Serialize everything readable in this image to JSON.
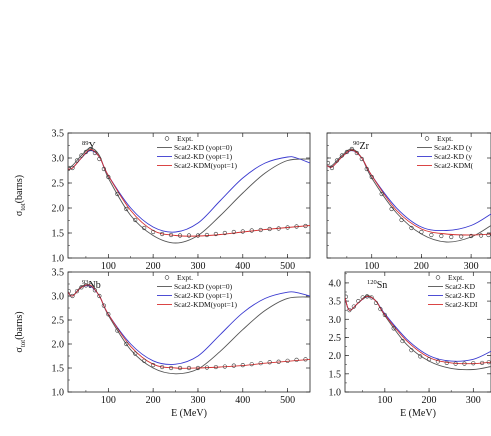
{
  "chart_data": [
    {
      "type": "line",
      "panel": "top-left",
      "nucleus": {
        "mass": "89",
        "element": "Y"
      },
      "xlim": [
        10,
        550
      ],
      "ylim": [
        1.0,
        3.5
      ],
      "xticks": [
        100,
        200,
        300,
        400,
        500
      ],
      "xtick_labels": [
        "100",
        "200",
        "300",
        "400",
        "500"
      ],
      "yticks": [
        1.0,
        1.5,
        2.0,
        2.5,
        3.0,
        3.5
      ],
      "ytick_labels": [
        "1.0",
        "1.5",
        "2.0",
        "2.5",
        "3.0",
        "3.5"
      ],
      "ylabel": {
        "sigma": "σ",
        "sub": "tot",
        "rest": "(barns)"
      },
      "xlabel": "",
      "legend": {
        "expt": "Expt.",
        "position": "top-right",
        "entries": [
          "Scat2-KD  (yopt=0)",
          "Scat2-KD  (yopt=1)",
          "Scat2-KDM(yopt=1)"
        ]
      },
      "series": [
        {
          "name": "Scat2-KD  (yopt=0)",
          "color": "#555555",
          "x": [
            10,
            20,
            40,
            60,
            80,
            100,
            150,
            200,
            250,
            300,
            350,
            400,
            450,
            500,
            550
          ],
          "y": [
            2.8,
            2.85,
            3.05,
            3.2,
            3.05,
            2.6,
            1.85,
            1.45,
            1.3,
            1.45,
            1.85,
            2.3,
            2.7,
            2.95,
            2.98
          ]
        },
        {
          "name": "Scat2-KD  (yopt=1)",
          "color": "#3a3ad0",
          "x": [
            10,
            20,
            40,
            60,
            80,
            100,
            150,
            200,
            250,
            300,
            350,
            400,
            450,
            500,
            520,
            550
          ],
          "y": [
            2.78,
            2.8,
            3.0,
            3.15,
            3.02,
            2.65,
            2.0,
            1.62,
            1.52,
            1.7,
            2.15,
            2.6,
            2.9,
            3.02,
            3.0,
            2.9
          ]
        },
        {
          "name": "Scat2-KDM(yopt=1)",
          "color": "#d63030",
          "x": [
            10,
            20,
            40,
            60,
            80,
            100,
            150,
            200,
            250,
            300,
            350,
            400,
            450,
            500,
            550
          ],
          "y": [
            2.78,
            2.8,
            3.0,
            3.17,
            3.02,
            2.65,
            1.95,
            1.55,
            1.45,
            1.44,
            1.47,
            1.52,
            1.57,
            1.61,
            1.65
          ]
        }
      ],
      "expt": {
        "x": [
          12,
          20,
          30,
          40,
          50,
          60,
          70,
          80,
          90,
          100,
          120,
          140,
          160,
          180,
          200,
          220,
          240,
          260,
          280,
          300,
          320,
          340,
          360,
          380,
          400,
          420,
          440,
          460,
          480,
          500,
          520,
          540
        ],
        "y": [
          2.8,
          2.8,
          2.95,
          3.05,
          3.12,
          3.18,
          3.1,
          2.98,
          2.78,
          2.62,
          2.28,
          1.98,
          1.76,
          1.6,
          1.52,
          1.48,
          1.46,
          1.45,
          1.45,
          1.45,
          1.46,
          1.48,
          1.5,
          1.52,
          1.53,
          1.55,
          1.56,
          1.58,
          1.59,
          1.61,
          1.63,
          1.64
        ]
      }
    },
    {
      "type": "line",
      "panel": "top-right",
      "nucleus": {
        "mass": "90",
        "element": "Zr"
      },
      "xlim": [
        10,
        340
      ],
      "ylim": [
        1.0,
        3.5
      ],
      "xticks": [
        100,
        200,
        300
      ],
      "xtick_labels": [
        "100",
        "200",
        "300"
      ],
      "yticks": [
        1.0,
        1.5,
        2.0,
        2.5,
        3.0,
        3.5
      ],
      "ytick_labels": [],
      "ylabel": null,
      "xlabel": "",
      "legend": {
        "expt": "Expt.",
        "position": "top-right",
        "entries": [
          "Scat2-KD  (y",
          "Scat2-KD  (y",
          "Scat2-KDM("
        ]
      },
      "series": [
        {
          "name": "Scat2-KD  (y",
          "color": "#555555",
          "x": [
            10,
            20,
            40,
            60,
            80,
            100,
            150,
            200,
            250,
            300,
            340
          ],
          "y": [
            2.85,
            2.85,
            3.05,
            3.18,
            3.0,
            2.6,
            1.9,
            1.48,
            1.32,
            1.42,
            1.65
          ]
        },
        {
          "name": "Scat2-KD  (y",
          "color": "#3a3ad0",
          "x": [
            10,
            20,
            40,
            60,
            80,
            100,
            150,
            200,
            250,
            300,
            340
          ],
          "y": [
            2.85,
            2.82,
            3.02,
            3.15,
            3.0,
            2.65,
            2.0,
            1.62,
            1.55,
            1.65,
            1.88
          ]
        },
        {
          "name": "Scat2-KDM(",
          "color": "#d63030",
          "x": [
            10,
            20,
            40,
            60,
            80,
            100,
            150,
            200,
            250,
            300,
            340
          ],
          "y": [
            2.85,
            2.82,
            3.02,
            3.16,
            3.0,
            2.65,
            1.95,
            1.58,
            1.48,
            1.46,
            1.48
          ]
        }
      ],
      "expt": {
        "x": [
          12,
          20,
          30,
          40,
          50,
          60,
          70,
          80,
          90,
          100,
          120,
          140,
          160,
          180,
          200,
          220,
          240,
          260,
          280,
          300,
          320,
          335
        ],
        "y": [
          2.9,
          2.8,
          2.95,
          3.05,
          3.12,
          3.18,
          3.1,
          2.98,
          2.78,
          2.62,
          2.28,
          1.98,
          1.76,
          1.6,
          1.52,
          1.46,
          1.44,
          1.42,
          1.43,
          1.44,
          1.45,
          1.46
        ]
      }
    },
    {
      "type": "line",
      "panel": "bottom-left",
      "nucleus": {
        "mass": "93",
        "element": "Nb"
      },
      "xlim": [
        10,
        550
      ],
      "ylim": [
        1.0,
        3.5
      ],
      "xticks": [
        100,
        200,
        300,
        400,
        500
      ],
      "xtick_labels": [
        "100",
        "200",
        "300",
        "400",
        "500"
      ],
      "yticks": [
        1.0,
        1.5,
        2.0,
        2.5,
        3.0,
        3.5
      ],
      "ytick_labels": [
        "1.0",
        "1.5",
        "2.0",
        "2.5",
        "3.0",
        "3.5"
      ],
      "ylabel": {
        "sigma": "σ",
        "sub": "tot",
        "rest": "(barns)"
      },
      "xlabel": "E (MeV)",
      "legend": {
        "expt": "Expt.",
        "position": "top-right",
        "entries": [
          "Scat2-KD  (yopt=0)",
          "Scat2-KD  (yopt=1)",
          "Scat2-KDM(yopt=1)"
        ]
      },
      "series": [
        {
          "name": "Scat2-KD  (yopt=0)",
          "color": "#555555",
          "x": [
            10,
            20,
            40,
            60,
            80,
            100,
            150,
            200,
            250,
            300,
            350,
            400,
            450,
            500,
            550
          ],
          "y": [
            3.1,
            3.0,
            3.2,
            3.22,
            3.0,
            2.6,
            1.88,
            1.5,
            1.38,
            1.48,
            1.85,
            2.3,
            2.7,
            2.95,
            2.98
          ]
        },
        {
          "name": "Scat2-KD  (yopt=1)",
          "color": "#3a3ad0",
          "x": [
            10,
            20,
            40,
            60,
            80,
            100,
            150,
            200,
            250,
            300,
            350,
            400,
            450,
            500,
            520,
            550
          ],
          "y": [
            3.08,
            3.0,
            3.18,
            3.2,
            3.0,
            2.62,
            2.0,
            1.65,
            1.58,
            1.75,
            2.2,
            2.65,
            2.95,
            3.08,
            3.07,
            3.0
          ]
        },
        {
          "name": "Scat2-KDM(yopt=1)",
          "color": "#d63030",
          "x": [
            10,
            20,
            40,
            60,
            80,
            100,
            150,
            200,
            250,
            300,
            350,
            400,
            450,
            500,
            550
          ],
          "y": [
            3.08,
            3.0,
            3.18,
            3.22,
            3.0,
            2.62,
            1.95,
            1.58,
            1.5,
            1.5,
            1.52,
            1.55,
            1.6,
            1.64,
            1.68
          ]
        }
      ],
      "expt": {
        "x": [
          12,
          20,
          30,
          40,
          50,
          60,
          70,
          80,
          90,
          100,
          120,
          140,
          160,
          180,
          200,
          220,
          240,
          260,
          280,
          300,
          320,
          340,
          360,
          380,
          400,
          420,
          440,
          460,
          480,
          500,
          520,
          540
        ],
        "y": [
          3.1,
          3.0,
          3.1,
          3.18,
          3.22,
          3.22,
          3.12,
          3.0,
          2.8,
          2.62,
          2.28,
          2.0,
          1.8,
          1.65,
          1.56,
          1.52,
          1.5,
          1.5,
          1.5,
          1.5,
          1.51,
          1.52,
          1.53,
          1.55,
          1.56,
          1.58,
          1.6,
          1.62,
          1.63,
          1.65,
          1.67,
          1.68
        ]
      }
    },
    {
      "type": "line",
      "panel": "bottom-right",
      "nucleus": {
        "mass": "120",
        "element": "Sn"
      },
      "xlim": [
        10,
        340
      ],
      "ylim": [
        1.0,
        4.3
      ],
      "xticks": [
        100,
        200,
        300
      ],
      "xtick_labels": [
        "100",
        "200",
        "300"
      ],
      "yticks": [
        1.0,
        1.5,
        2.0,
        2.5,
        3.0,
        3.5,
        4.0
      ],
      "ytick_labels": [
        "1.0",
        "1.5",
        "2.0",
        "2.5",
        "3.0",
        "3.5",
        "4.0"
      ],
      "ylabel": null,
      "xlabel": "E (MeV)",
      "legend": {
        "expt": "Expt.",
        "position": "top-right",
        "entries": [
          "Scat2-KD",
          "Scat2-KD",
          "Scat2-KDI"
        ]
      },
      "series": [
        {
          "name": "Scat2-KD",
          "color": "#555555",
          "x": [
            10,
            20,
            40,
            60,
            80,
            100,
            150,
            200,
            250,
            300,
            340
          ],
          "y": [
            3.6,
            3.25,
            3.45,
            3.65,
            3.5,
            3.1,
            2.3,
            1.85,
            1.65,
            1.62,
            1.7
          ]
        },
        {
          "name": "Scat2-KD",
          "color": "#3a3ad0",
          "x": [
            10,
            20,
            40,
            60,
            80,
            100,
            150,
            200,
            250,
            300,
            340
          ],
          "y": [
            3.6,
            3.25,
            3.45,
            3.62,
            3.5,
            3.15,
            2.45,
            2.0,
            1.85,
            1.9,
            2.12
          ]
        },
        {
          "name": "Scat2-KDI",
          "color": "#d63030",
          "x": [
            10,
            20,
            40,
            60,
            80,
            100,
            150,
            200,
            250,
            300,
            340
          ],
          "y": [
            3.6,
            3.25,
            3.45,
            3.63,
            3.5,
            3.12,
            2.4,
            1.95,
            1.8,
            1.78,
            1.82
          ]
        }
      ],
      "expt": {
        "x": [
          12,
          20,
          30,
          40,
          50,
          60,
          70,
          80,
          90,
          100,
          120,
          140,
          160,
          180,
          200,
          220,
          240,
          260,
          280,
          300,
          320,
          335
        ],
        "y": [
          3.62,
          3.25,
          3.35,
          3.5,
          3.6,
          3.63,
          3.6,
          3.45,
          3.28,
          3.12,
          2.75,
          2.4,
          2.15,
          1.98,
          1.9,
          1.84,
          1.8,
          1.78,
          1.78,
          1.79,
          1.8,
          1.82
        ]
      }
    }
  ]
}
